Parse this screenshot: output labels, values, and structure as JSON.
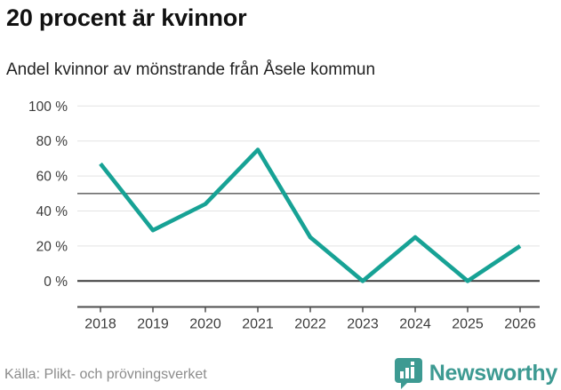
{
  "header": {
    "title": "20 procent är kvinnor",
    "subtitle": "Andel kvinnor av mönstrande från Åsele kommun"
  },
  "chart_data": {
    "type": "line",
    "title": "20 procent är kvinnor",
    "subtitle": "Andel kvinnor av mönstrande från Åsele kommun",
    "x": [
      2018,
      2019,
      2020,
      2021,
      2022,
      2023,
      2024,
      2025,
      2026
    ],
    "values": [
      67,
      29,
      44,
      75,
      25,
      0,
      25,
      0,
      20
    ],
    "unit": "%",
    "ylim": [
      0,
      100
    ],
    "yticks": [
      0,
      20,
      40,
      60,
      80,
      100
    ],
    "ytick_suffix": " %",
    "reference_line": 50,
    "grid": true,
    "legend": "none",
    "line_color": "#17a295"
  },
  "footer": {
    "source": "Källa: Plikt- och prövningsverket",
    "brand": "Newsworthy"
  },
  "colors": {
    "accent_line": "#17a295",
    "brand_teal": "#3d9a92",
    "grid_light": "#e3e3e3",
    "grid_dark": "#3a3a3a",
    "text_dark": "#111111",
    "text_muted": "#8c8c8c"
  }
}
